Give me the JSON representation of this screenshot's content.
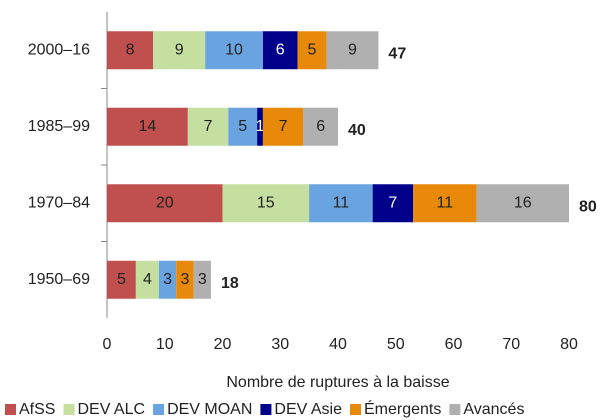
{
  "chart_data": {
    "type": "bar",
    "orientation": "horizontal",
    "stacked": true,
    "xlabel": "Nombre de ruptures à la baisse",
    "categories": [
      "2000–16",
      "1985–99",
      "1970–84",
      "1950–69"
    ],
    "series": [
      {
        "name": "AfSS",
        "color": "#c0504d",
        "values": [
          8,
          14,
          20,
          5
        ]
      },
      {
        "name": "DEV ALC",
        "color": "#c4dfa0",
        "values": [
          9,
          7,
          15,
          4
        ]
      },
      {
        "name": "DEV MOAN",
        "color": "#6aa4e0",
        "values": [
          10,
          5,
          11,
          3
        ]
      },
      {
        "name": "DEV Asie",
        "color": "#00008b",
        "values": [
          6,
          1,
          7,
          0
        ]
      },
      {
        "name": "Émergents",
        "color": "#e8890a",
        "values": [
          5,
          7,
          11,
          3
        ]
      },
      {
        "name": "Avancés",
        "color": "#b0b0b0",
        "values": [
          9,
          6,
          16,
          3
        ]
      }
    ],
    "totals": [
      47,
      40,
      80,
      18
    ],
    "xlim": [
      0,
      80
    ],
    "xticks": [
      0,
      10,
      20,
      30,
      40,
      50,
      60,
      70,
      80
    ],
    "grid": false,
    "legend": "bottom"
  }
}
